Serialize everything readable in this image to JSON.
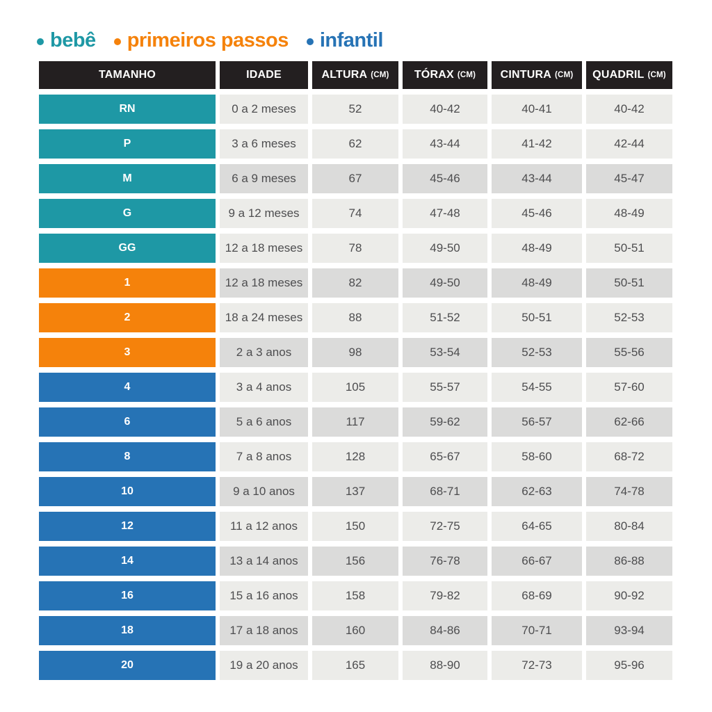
{
  "legend": {
    "items": [
      {
        "label": "bebê",
        "color": "#1E98A5"
      },
      {
        "label": "primeiros passos",
        "color": "#F5820B"
      },
      {
        "label": "infantil",
        "color": "#2673B5"
      }
    ]
  },
  "table": {
    "header": {
      "background": "#231F20",
      "text_color": "#FFFFFF",
      "columns": [
        {
          "label": "TAMANHO",
          "unit": ""
        },
        {
          "label": "IDADE",
          "unit": ""
        },
        {
          "label": "ALTURA",
          "unit": "(CM)"
        },
        {
          "label": "TÓRAX",
          "unit": "(CM)"
        },
        {
          "label": "CINTURA",
          "unit": "(CM)"
        },
        {
          "label": "QUADRIL",
          "unit": "(CM)"
        }
      ]
    },
    "row_colors": {
      "light": "#ECECE9",
      "shaded": "#DBDBDA",
      "text": "#4D4D4F"
    },
    "categories": {
      "bebe": "#1E98A5",
      "primeiros_passos": "#F5820B",
      "infantil": "#2673B5"
    },
    "rows": [
      {
        "size": "RN",
        "category": "bebe",
        "idade": "0 a 2 meses",
        "altura": "52",
        "torax": "40-42",
        "cintura": "40-41",
        "quadril": "40-42",
        "shaded": false
      },
      {
        "size": "P",
        "category": "bebe",
        "idade": "3 a 6 meses",
        "altura": "62",
        "torax": "43-44",
        "cintura": "41-42",
        "quadril": "42-44",
        "shaded": false
      },
      {
        "size": "M",
        "category": "bebe",
        "idade": "6 a 9 meses",
        "altura": "67",
        "torax": "45-46",
        "cintura": "43-44",
        "quadril": "45-47",
        "shaded": true
      },
      {
        "size": "G",
        "category": "bebe",
        "idade": "9 a 12 meses",
        "altura": "74",
        "torax": "47-48",
        "cintura": "45-46",
        "quadril": "48-49",
        "shaded": false
      },
      {
        "size": "GG",
        "category": "bebe",
        "idade": "12 a 18 meses",
        "altura": "78",
        "torax": "49-50",
        "cintura": "48-49",
        "quadril": "50-51",
        "shaded": false
      },
      {
        "size": "1",
        "category": "primeiros_passos",
        "idade": "12 a 18 meses",
        "altura": "82",
        "torax": "49-50",
        "cintura": "48-49",
        "quadril": "50-51",
        "shaded": true
      },
      {
        "size": "2",
        "category": "primeiros_passos",
        "idade": "18 a 24 meses",
        "altura": "88",
        "torax": "51-52",
        "cintura": "50-51",
        "quadril": "52-53",
        "shaded": false
      },
      {
        "size": "3",
        "category": "primeiros_passos",
        "idade": "2 a 3 anos",
        "altura": "98",
        "torax": "53-54",
        "cintura": "52-53",
        "quadril": "55-56",
        "shaded": true
      },
      {
        "size": "4",
        "category": "infantil",
        "idade": "3 a 4 anos",
        "altura": "105",
        "torax": "55-57",
        "cintura": "54-55",
        "quadril": "57-60",
        "shaded": false
      },
      {
        "size": "6",
        "category": "infantil",
        "idade": "5 a 6 anos",
        "altura": "117",
        "torax": "59-62",
        "cintura": "56-57",
        "quadril": "62-66",
        "shaded": true
      },
      {
        "size": "8",
        "category": "infantil",
        "idade": "7 a 8 anos",
        "altura": "128",
        "torax": "65-67",
        "cintura": "58-60",
        "quadril": "68-72",
        "shaded": false
      },
      {
        "size": "10",
        "category": "infantil",
        "idade": "9 a 10 anos",
        "altura": "137",
        "torax": "68-71",
        "cintura": "62-63",
        "quadril": "74-78",
        "shaded": true
      },
      {
        "size": "12",
        "category": "infantil",
        "idade": "11 a 12 anos",
        "altura": "150",
        "torax": "72-75",
        "cintura": "64-65",
        "quadril": "80-84",
        "shaded": false
      },
      {
        "size": "14",
        "category": "infantil",
        "idade": "13 a 14 anos",
        "altura": "156",
        "torax": "76-78",
        "cintura": "66-67",
        "quadril": "86-88",
        "shaded": true
      },
      {
        "size": "16",
        "category": "infantil",
        "idade": "15 a 16 anos",
        "altura": "158",
        "torax": "79-82",
        "cintura": "68-69",
        "quadril": "90-92",
        "shaded": false
      },
      {
        "size": "18",
        "category": "infantil",
        "idade": "17 a 18 anos",
        "altura": "160",
        "torax": "84-86",
        "cintura": "70-71",
        "quadril": "93-94",
        "shaded": true
      },
      {
        "size": "20",
        "category": "infantil",
        "idade": "19 a 20 anos",
        "altura": "165",
        "torax": "88-90",
        "cintura": "72-73",
        "quadril": "95-96",
        "shaded": false
      }
    ]
  },
  "chart_data": {
    "type": "table",
    "title": "",
    "legend_entries": [
      "bebê",
      "primeiros passos",
      "infantil"
    ],
    "columns": [
      "TAMANHO",
      "IDADE",
      "ALTURA (CM)",
      "TÓRAX (CM)",
      "CINTURA (CM)",
      "QUADRIL (CM)"
    ],
    "rows": [
      [
        "RN",
        "0 a 2 meses",
        "52",
        "40-42",
        "40-41",
        "40-42"
      ],
      [
        "P",
        "3 a 6 meses",
        "62",
        "43-44",
        "41-42",
        "42-44"
      ],
      [
        "M",
        "6 a 9 meses",
        "67",
        "45-46",
        "43-44",
        "45-47"
      ],
      [
        "G",
        "9 a 12 meses",
        "74",
        "47-48",
        "45-46",
        "48-49"
      ],
      [
        "GG",
        "12 a 18 meses",
        "78",
        "49-50",
        "48-49",
        "50-51"
      ],
      [
        "1",
        "12 a 18 meses",
        "82",
        "49-50",
        "48-49",
        "50-51"
      ],
      [
        "2",
        "18 a 24 meses",
        "88",
        "51-52",
        "50-51",
        "52-53"
      ],
      [
        "3",
        "2 a 3 anos",
        "98",
        "53-54",
        "52-53",
        "55-56"
      ],
      [
        "4",
        "3 a 4 anos",
        "105",
        "55-57",
        "54-55",
        "57-60"
      ],
      [
        "6",
        "5 a 6 anos",
        "117",
        "59-62",
        "56-57",
        "62-66"
      ],
      [
        "8",
        "7 a 8 anos",
        "128",
        "65-67",
        "58-60",
        "68-72"
      ],
      [
        "10",
        "9 a 10 anos",
        "137",
        "68-71",
        "62-63",
        "74-78"
      ],
      [
        "12",
        "11 a 12 anos",
        "150",
        "72-75",
        "64-65",
        "80-84"
      ],
      [
        "14",
        "13 a 14 anos",
        "156",
        "76-78",
        "66-67",
        "86-88"
      ],
      [
        "16",
        "15 a 16 anos",
        "158",
        "79-82",
        "68-69",
        "90-92"
      ],
      [
        "18",
        "17 a 18 anos",
        "160",
        "84-86",
        "70-71",
        "93-94"
      ],
      [
        "20",
        "19 a 20 anos",
        "165",
        "88-90",
        "72-73",
        "95-96"
      ]
    ]
  }
}
